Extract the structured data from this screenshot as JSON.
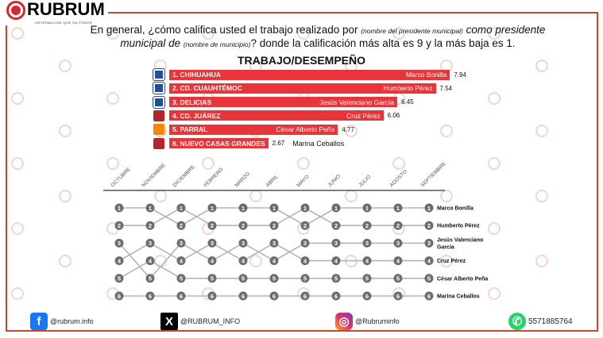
{
  "brand": {
    "name": "RUBRUM",
    "tagline": "INFORMACIÓN QUE DA PODER",
    "watermark": "RUBRUM"
  },
  "question": {
    "part1": "En general, ¿cómo califica usted el trabajo realizado por",
    "note1": "(nombre del presidente municipal)",
    "part2": "como presidente municipal de",
    "note2": "(nombre de municipio)",
    "part3": "? donde la calificación más alta es 9 y la más baja es 1."
  },
  "chart_data": [
    {
      "type": "bar",
      "title": "TRABAJO/DESEMPEÑO",
      "xlim": [
        0,
        9
      ],
      "categories": [
        "1. CHIHUAHUA",
        "2. CD. CUAUHTÉMOC",
        "3. DELICIAS",
        "4. CD. JUÁREZ",
        "5. PARRAL",
        "6. NUEVO CASAS GRANDES"
      ],
      "names": [
        "Marco Bonilla",
        "Humberto Pérez",
        "Jesús Valenciano García",
        "Cruz Pérez",
        "César Alberto Peña",
        "Marina Ceballos"
      ],
      "parties": [
        "pan",
        "pan",
        "pan",
        "morena",
        "mc",
        "morena"
      ],
      "values": [
        7.94,
        7.54,
        6.45,
        6.06,
        4.77,
        2.67
      ],
      "bar_color": "#e8353a"
    },
    {
      "type": "line",
      "subtype": "bump",
      "months": [
        "OCTUBRE",
        "NOVIEMBRE",
        "DICIEMBRE",
        "FEBRERO",
        "MARZO",
        "ABRIL",
        "MAYO",
        "JUNIO",
        "JULIO",
        "AGOSTO",
        "SEPTIEMBRE"
      ],
      "ranks": [
        1,
        2,
        3,
        4,
        5,
        6
      ],
      "final_labels": [
        "Marco Bonilla",
        "Humberto Pérez",
        "Jesús Valenciano García",
        "Cruz Pérez",
        "César Alberto Peña",
        "Marina Ceballos"
      ],
      "transitions": [
        [
          [
            1,
            1
          ],
          [
            2,
            2
          ],
          [
            3,
            5
          ],
          [
            4,
            3
          ],
          [
            5,
            4
          ],
          [
            6,
            6
          ]
        ],
        [
          [
            1,
            2
          ],
          [
            2,
            1
          ],
          [
            3,
            4
          ],
          [
            4,
            5
          ],
          [
            5,
            3
          ],
          [
            6,
            6
          ]
        ],
        [
          [
            1,
            2
          ],
          [
            2,
            1
          ],
          [
            3,
            4
          ],
          [
            4,
            3
          ],
          [
            5,
            5
          ],
          [
            6,
            6
          ]
        ],
        [
          [
            1,
            1
          ],
          [
            2,
            2
          ],
          [
            3,
            4
          ],
          [
            4,
            3
          ],
          [
            5,
            5
          ],
          [
            6,
            6
          ]
        ],
        [
          [
            1,
            1
          ],
          [
            2,
            2
          ],
          [
            3,
            4
          ],
          [
            4,
            3
          ],
          [
            5,
            5
          ],
          [
            6,
            6
          ]
        ],
        [
          [
            1,
            2
          ],
          [
            2,
            1
          ],
          [
            3,
            4
          ],
          [
            4,
            3
          ],
          [
            5,
            5
          ],
          [
            6,
            6
          ]
        ],
        [
          [
            1,
            2
          ],
          [
            2,
            1
          ],
          [
            3,
            3
          ],
          [
            4,
            4
          ],
          [
            5,
            5
          ],
          [
            6,
            6
          ]
        ],
        [
          [
            1,
            1
          ],
          [
            2,
            2
          ],
          [
            3,
            3
          ],
          [
            4,
            4
          ],
          [
            5,
            5
          ],
          [
            6,
            6
          ]
        ],
        [
          [
            1,
            1
          ],
          [
            2,
            2
          ],
          [
            3,
            3
          ],
          [
            4,
            4
          ],
          [
            5,
            5
          ],
          [
            6,
            6
          ]
        ],
        [
          [
            1,
            1
          ],
          [
            2,
            2
          ],
          [
            3,
            3
          ],
          [
            4,
            4
          ],
          [
            5,
            5
          ],
          [
            6,
            6
          ]
        ]
      ],
      "line_color": "#b5b5b5",
      "node_color": "#6d6d6d"
    }
  ],
  "footer": {
    "facebook": "@rubrum.info",
    "x": "@RUBRUM_INFO",
    "instagram": "@Rubruminfo",
    "whatsapp": "5571885764"
  }
}
